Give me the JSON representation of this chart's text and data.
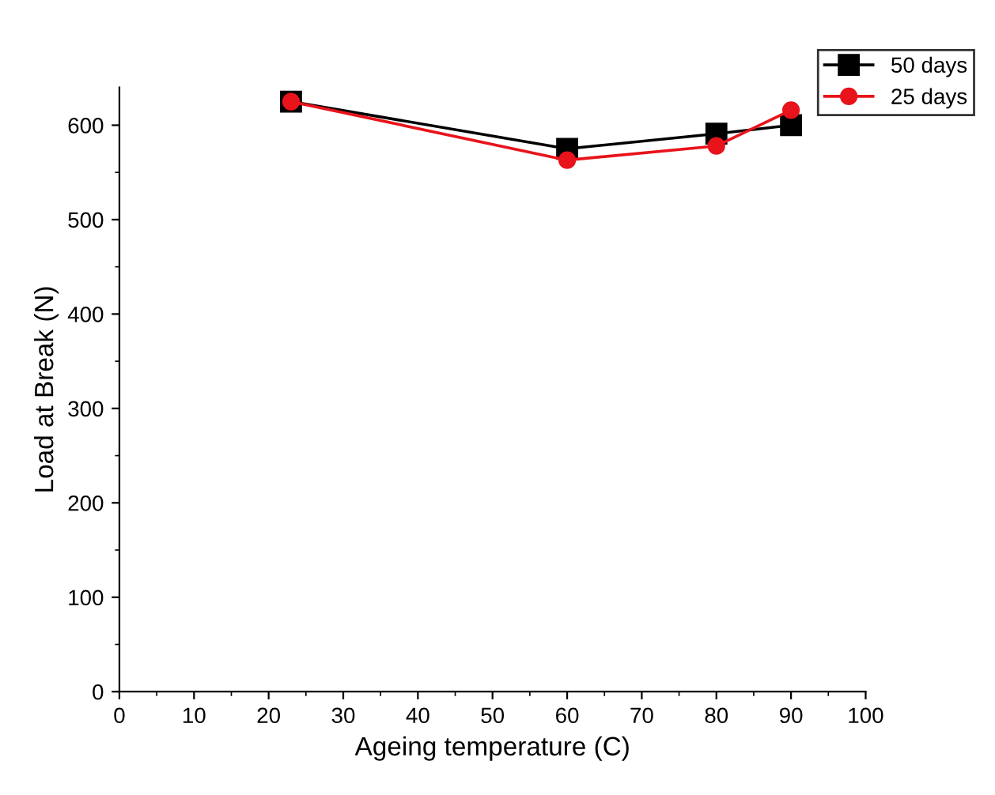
{
  "chart_data": {
    "type": "line",
    "xlabel": "Ageing temperature (C)",
    "ylabel": "Load at Break (N)",
    "x": [
      23,
      60,
      80,
      90
    ],
    "series": [
      {
        "name": "50 days",
        "color": "#000000",
        "marker": "square",
        "values": [
          625,
          575,
          591,
          600
        ]
      },
      {
        "name": "25 days",
        "color": "#e8131b",
        "marker": "circle",
        "values": [
          625,
          563,
          578,
          616
        ]
      }
    ],
    "xlim": [
      0,
      100
    ],
    "xticks": [
      0,
      10,
      20,
      30,
      40,
      50,
      60,
      70,
      80,
      90,
      100
    ],
    "ylim": [
      0,
      640
    ],
    "yticks": [
      0,
      100,
      200,
      300,
      400,
      500,
      600
    ],
    "grid": false,
    "legend": "top right",
    "line_style": "solid"
  }
}
